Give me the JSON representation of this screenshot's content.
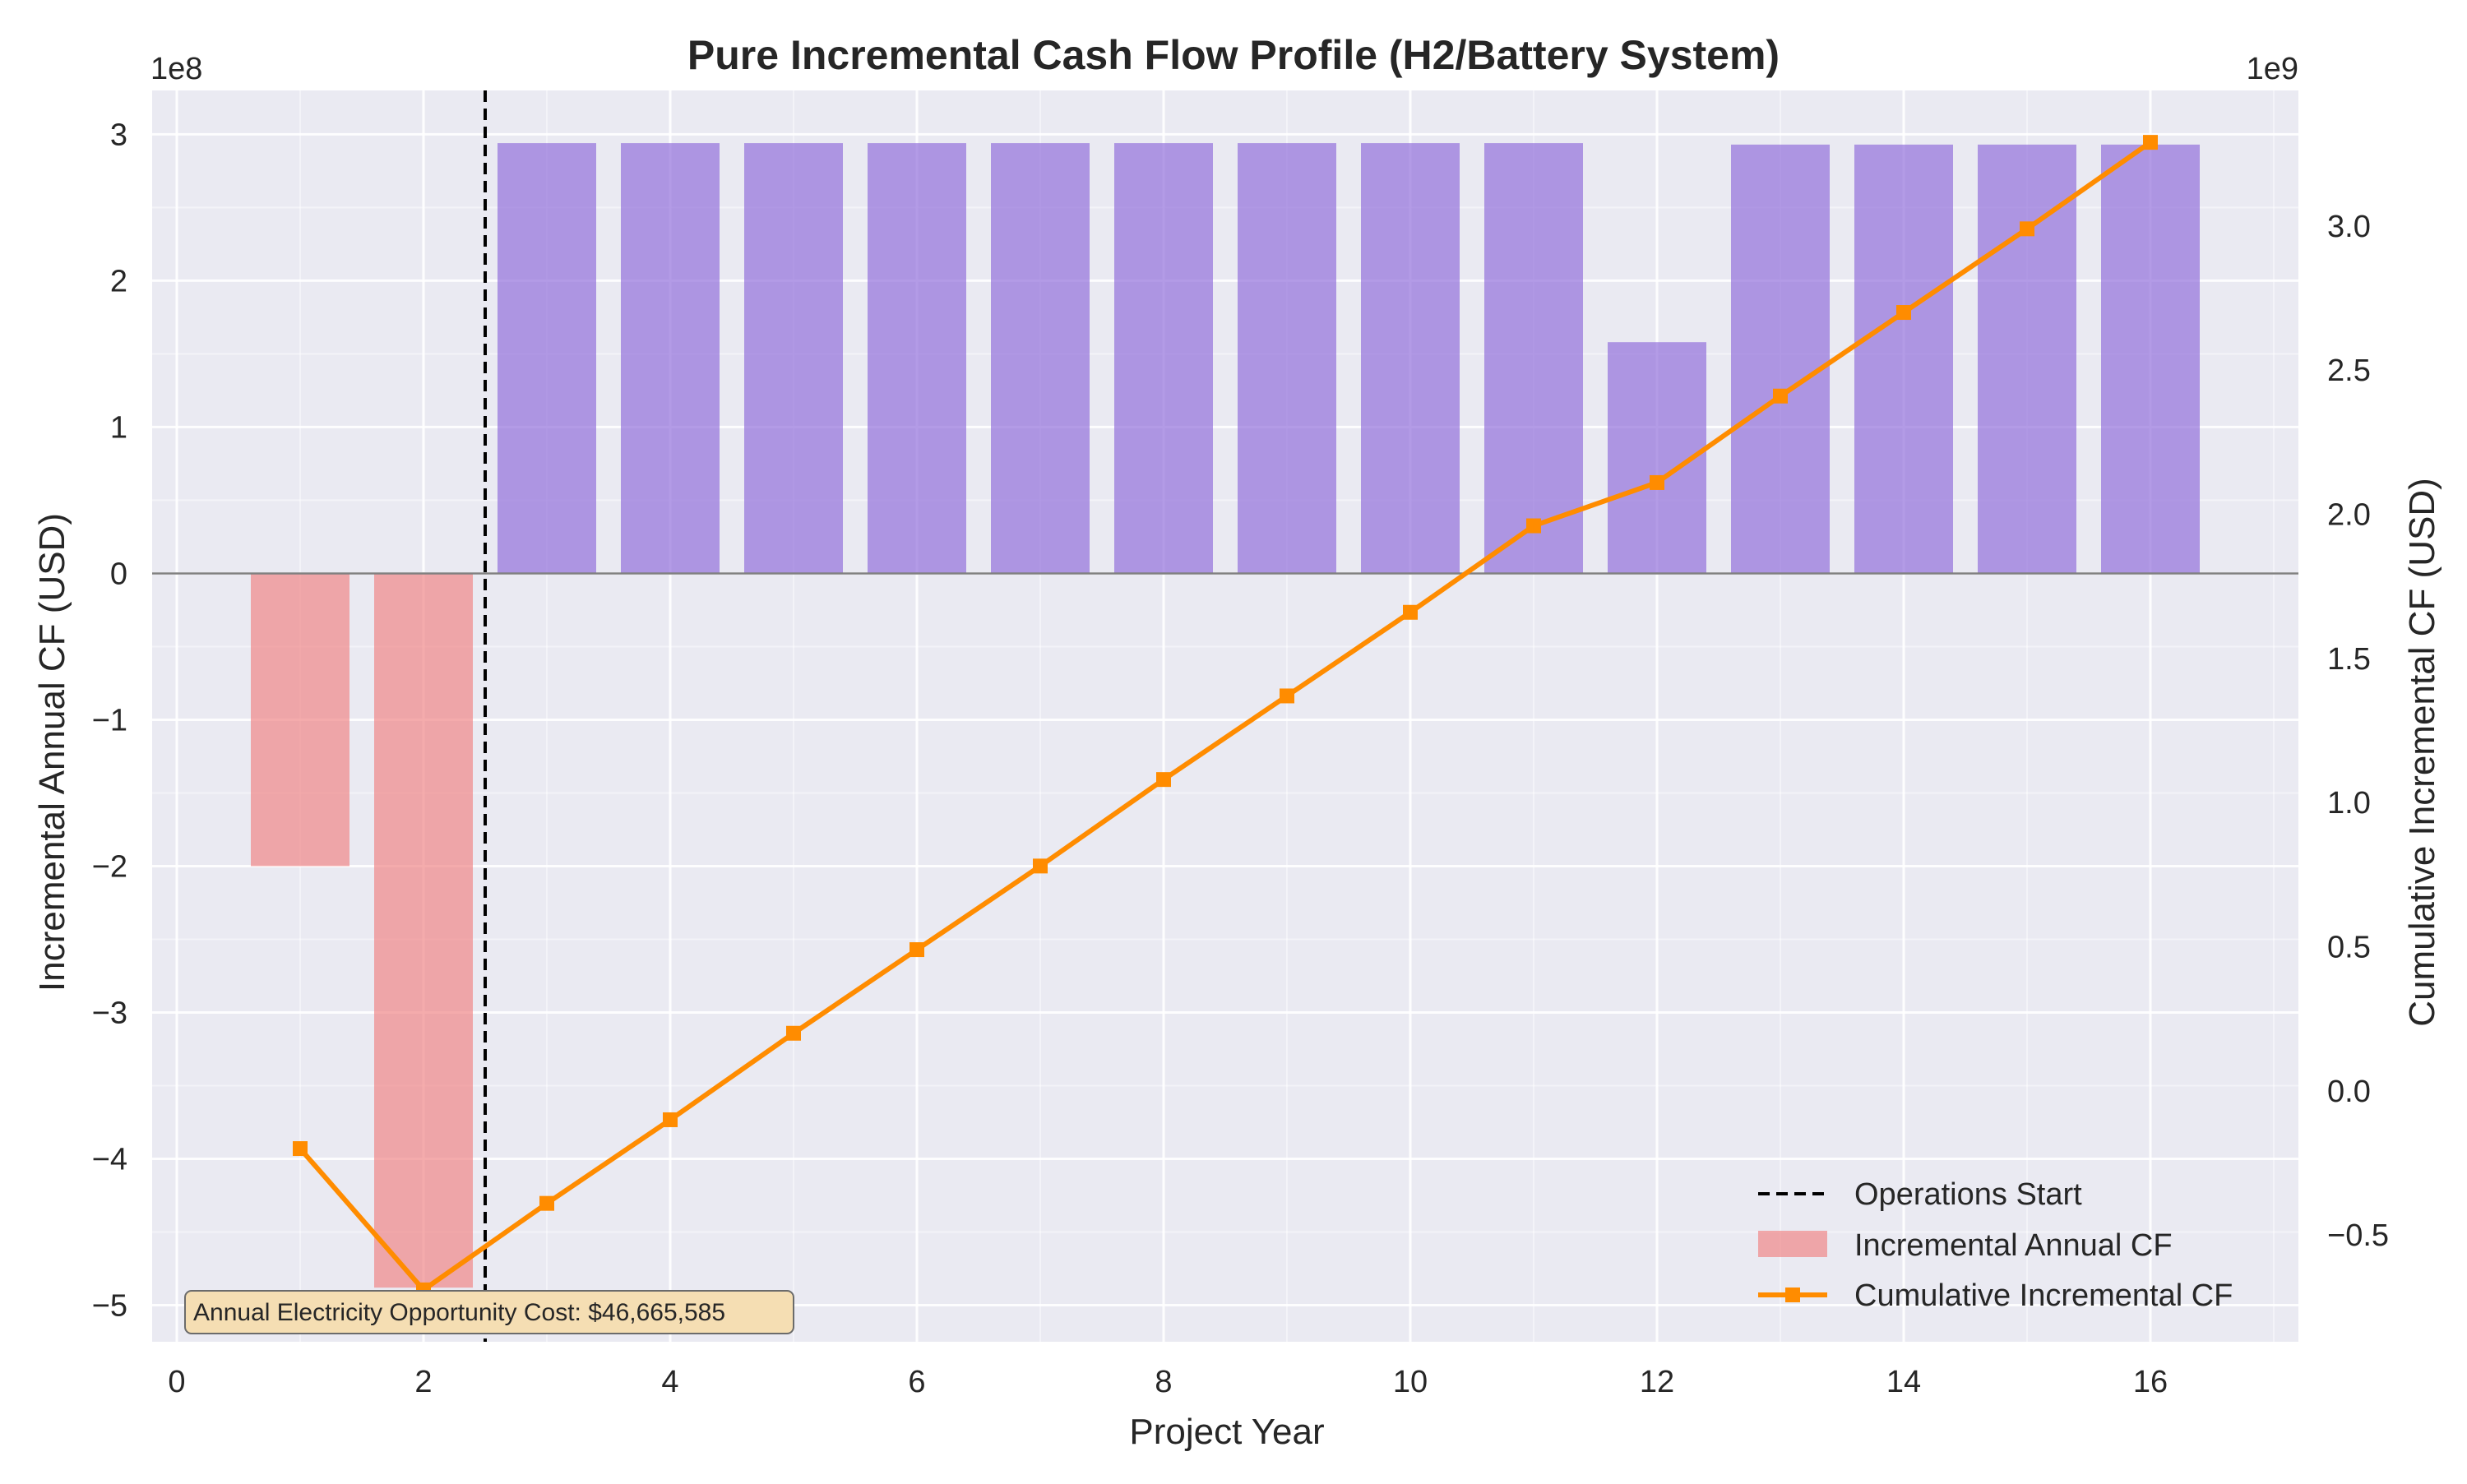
{
  "chart_data": {
    "type": "bar",
    "title": "Pure Incremental Cash Flow Profile (H2/Battery System)",
    "xlabel": "Project Year",
    "ylabel_left": "Incremental Annual CF (USD)",
    "ylabel_right": "Cumulative Incremental CF (USD)",
    "offset_left": "1e8",
    "offset_right": "1e9",
    "xlim": [
      -0.2,
      17.2
    ],
    "ylim_left": [
      -5.25,
      3.3
    ],
    "ylim_right": [
      -0.87,
      3.47
    ],
    "x_ticks": [
      0,
      2,
      4,
      6,
      8,
      10,
      12,
      14,
      16
    ],
    "x_tick_labels": [
      "0",
      "2",
      "4",
      "6",
      "8",
      "10",
      "12",
      "14",
      "16"
    ],
    "y_left_ticks": [
      -5,
      -4,
      -3,
      -2,
      -1,
      0,
      1,
      2,
      3
    ],
    "y_left_tick_labels": [
      "−5",
      "−4",
      "−3",
      "−2",
      "−1",
      "0",
      "1",
      "2",
      "3"
    ],
    "y_right_ticks": [
      -0.5,
      0.0,
      0.5,
      1.0,
      1.5,
      2.0,
      2.5,
      3.0
    ],
    "y_right_tick_labels": [
      "−0.5",
      "0.0",
      "0.5",
      "1.0",
      "1.5",
      "2.0",
      "2.5",
      "3.0"
    ],
    "operations_start_year": 2.5,
    "bars": {
      "name": "Incremental Annual CF",
      "units": "1e8 USD",
      "years": [
        1,
        2,
        3,
        4,
        5,
        6,
        7,
        8,
        9,
        10,
        11,
        12,
        13,
        14,
        15,
        16
      ],
      "values": [
        -2.0,
        -4.88,
        2.94,
        2.94,
        2.94,
        2.94,
        2.94,
        2.94,
        2.94,
        2.94,
        2.94,
        1.58,
        2.93,
        2.93,
        2.93,
        2.93
      ],
      "negative_color": "#f08080",
      "positive_color": "#9370db"
    },
    "cumulative": {
      "name": "Cumulative Incremental CF",
      "units": "1e9 USD",
      "years": [
        1,
        2,
        3,
        4,
        5,
        6,
        7,
        8,
        9,
        10,
        11,
        12,
        13,
        14,
        15,
        16
      ],
      "values": [
        -0.2,
        -0.69,
        -0.39,
        -0.1,
        0.2,
        0.49,
        0.78,
        1.08,
        1.37,
        1.66,
        1.96,
        2.11,
        2.41,
        2.7,
        2.99,
        3.29
      ],
      "color": "#ff8c00"
    },
    "legend": {
      "position": "lower-right",
      "entries": [
        "Operations Start",
        "Incremental Annual CF",
        "Cumulative Incremental CF"
      ]
    },
    "annotation": "Annual Electricity Opportunity Cost: $46,665,585",
    "colors": {
      "plot_background": "#eaeaf2",
      "grid": "#ffffff",
      "zero_line": "#808080",
      "annotation_fill": "#f5deb3"
    }
  }
}
